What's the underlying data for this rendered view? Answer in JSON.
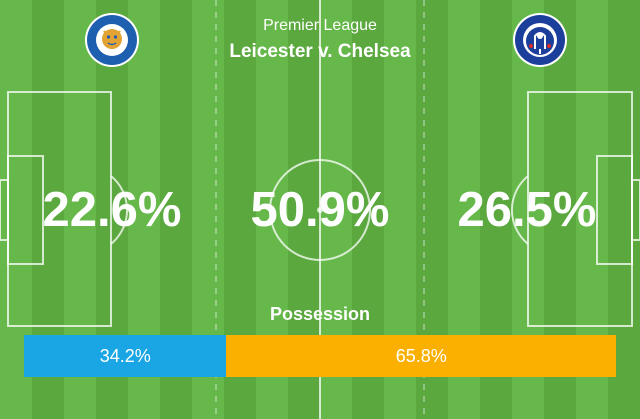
{
  "header": {
    "competition": "Premier League",
    "match": "Leicester v. Chelsea"
  },
  "crests": {
    "home": {
      "icon": "leicester-city-crest-icon",
      "lettering": "LEICESTER CITY FOOTBALL CLUB",
      "color": "#1f5fb0"
    },
    "away": {
      "icon": "chelsea-crest-icon",
      "lettering": "CHELSEA FOOTBALL CLUB",
      "color": "#1b3f9a"
    }
  },
  "stats": {
    "home": "22.6%",
    "draw": "50.9%",
    "away": "26.5%"
  },
  "possession": {
    "title": "Possession",
    "home": {
      "label": "34.2%",
      "value": 34.2,
      "color": "#1aa6e4"
    },
    "away": {
      "label": "65.8%",
      "value": 65.8,
      "color": "#fbb000"
    }
  },
  "pitch": {
    "stripe_light": "#66b84a",
    "stripe_dark": "#5aa83e",
    "line_color": "#ffffff"
  }
}
